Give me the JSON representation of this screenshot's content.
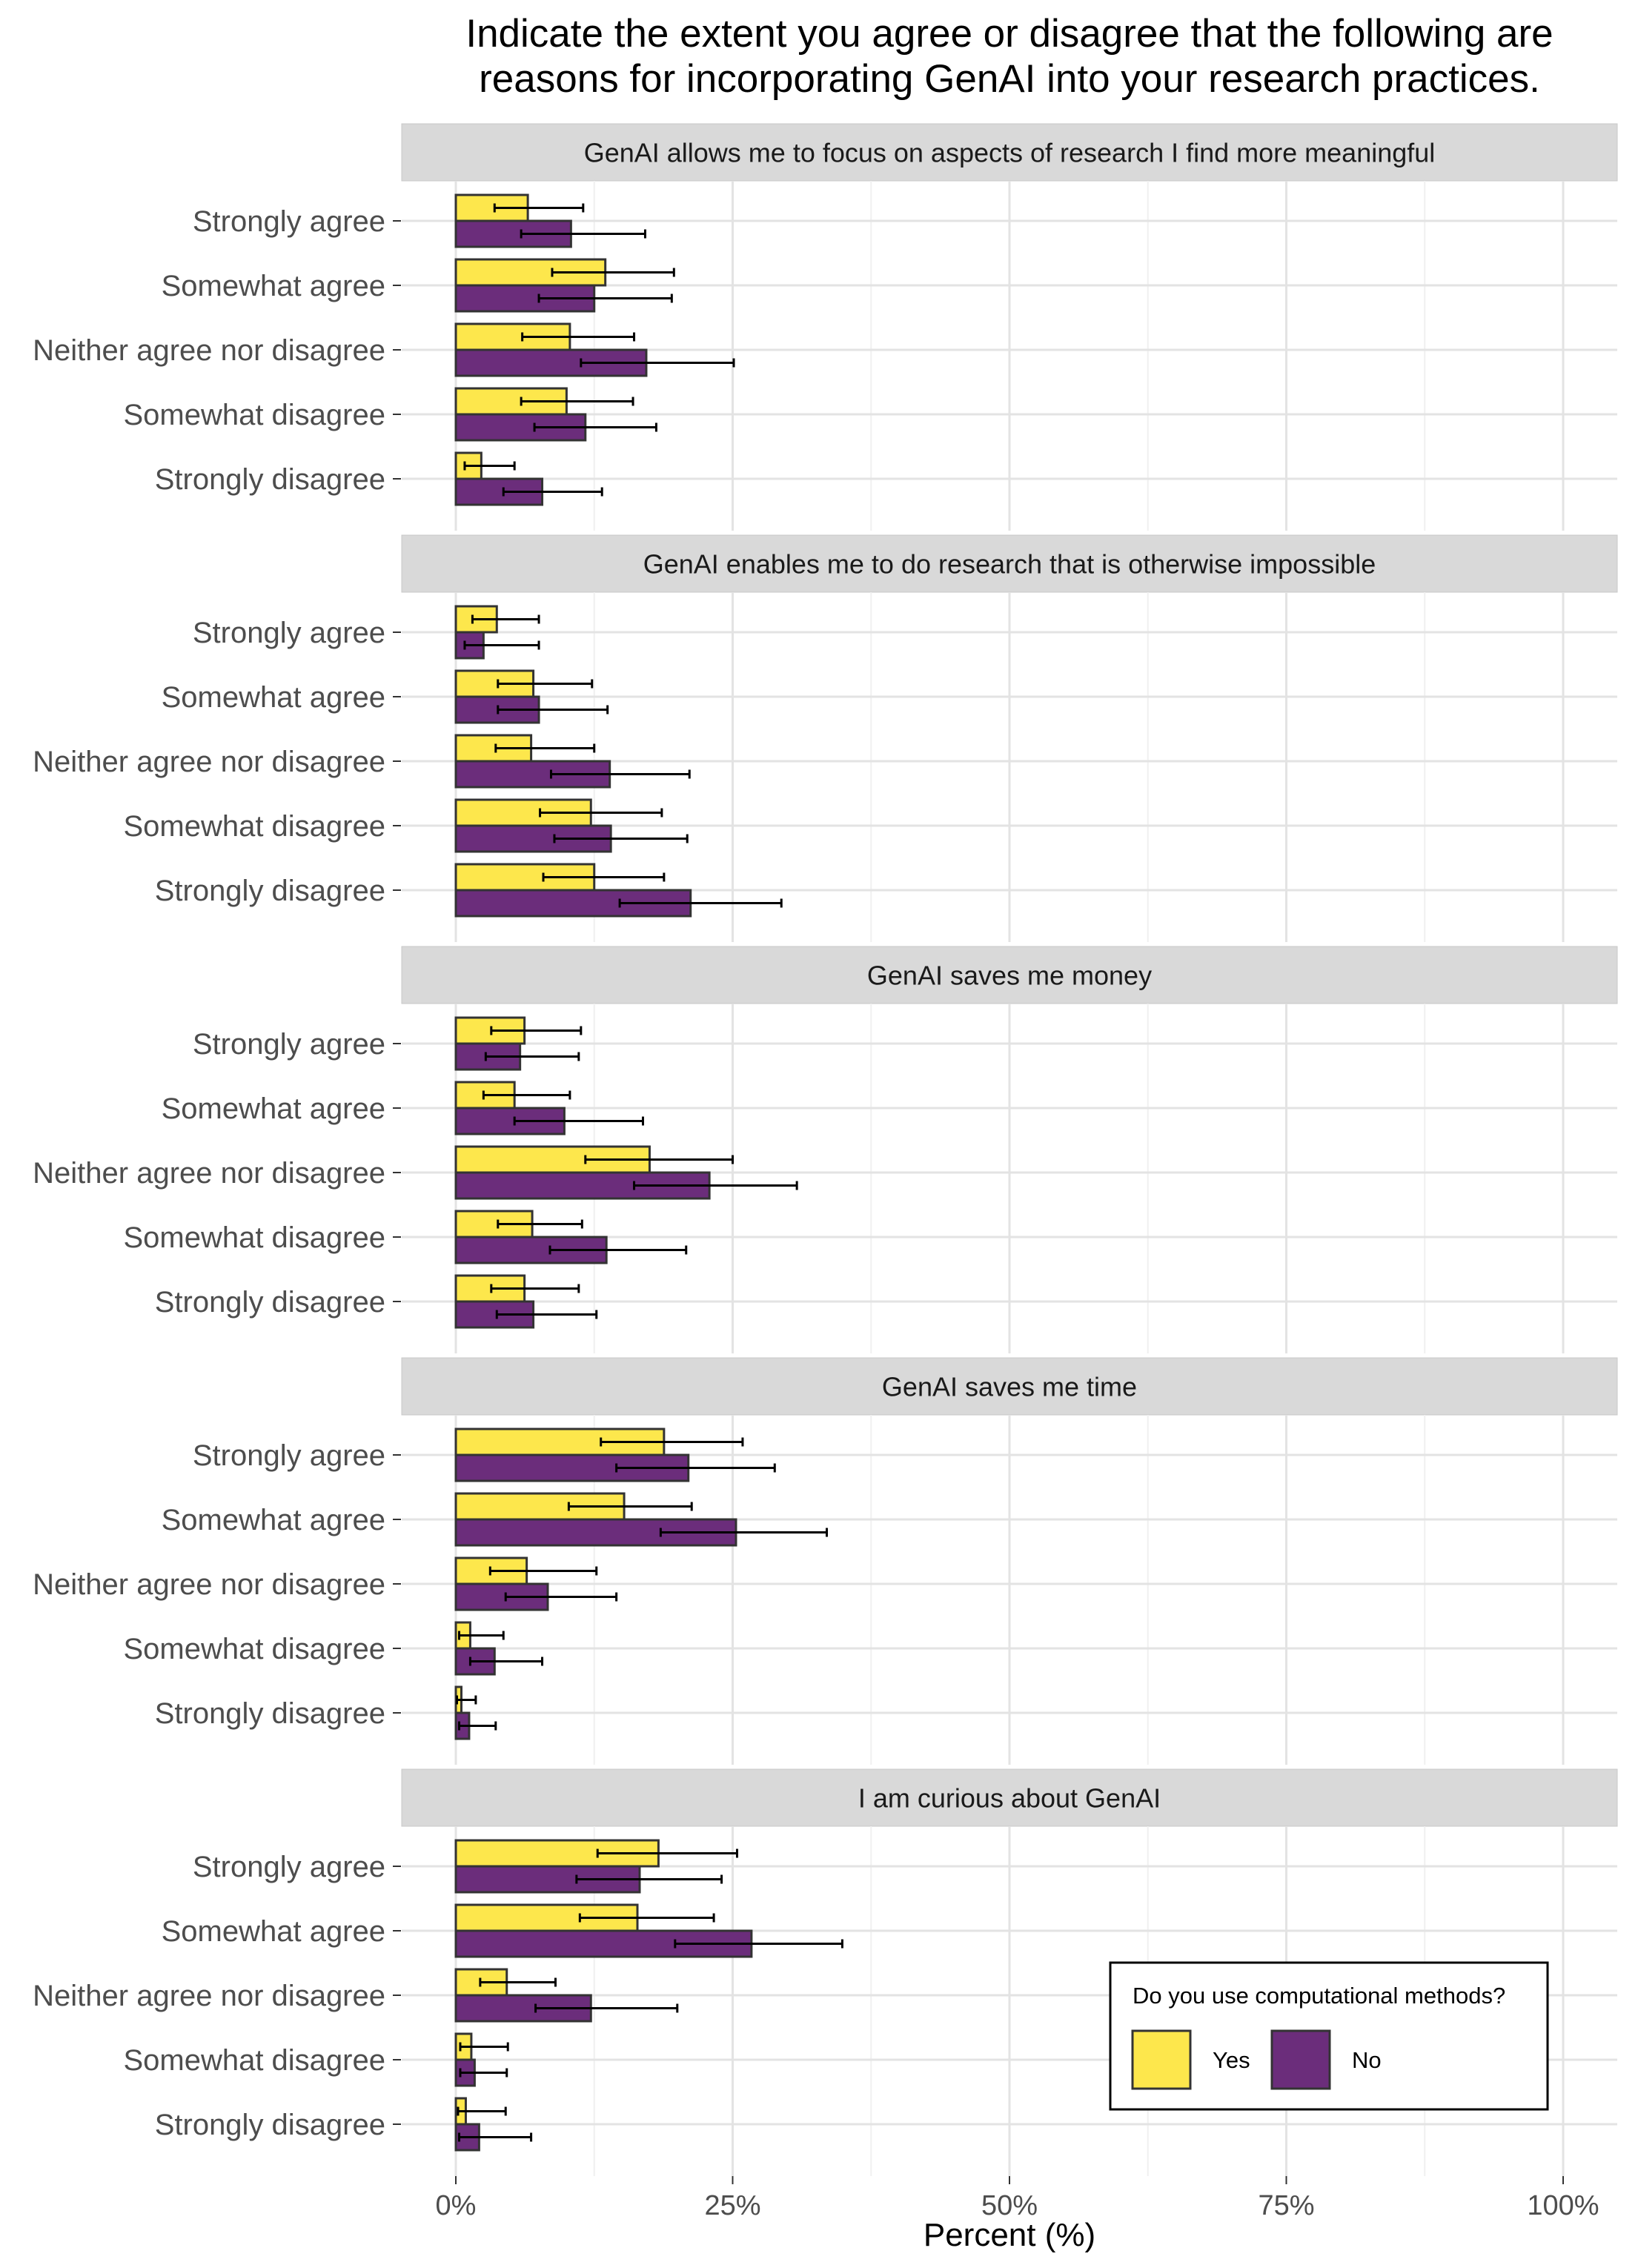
{
  "chart_data": {
    "type": "bar",
    "orientation": "horizontal",
    "title": "Indicate the extent you agree or disagree that the following are reasons for incorporating GenAI into your research practices.",
    "title_lines": [
      "Indicate the extent you agree or disagree that the following are",
      "reasons for incorporating GenAI into your research practices."
    ],
    "xlabel": "Percent (%)",
    "ylabel": "",
    "xlim": [
      0,
      100
    ],
    "x_ticks": [
      0,
      25,
      50,
      75,
      100
    ],
    "x_tick_labels": [
      "0%",
      "25%",
      "50%",
      "75%",
      "100%"
    ],
    "grid": true,
    "categories": [
      "Strongly agree",
      "Somewhat agree",
      "Neither agree nor disagree",
      "Somewhat disagree",
      "Strongly disagree"
    ],
    "legend": {
      "title": "Do you use computational methods?",
      "position": "bottom-right",
      "entries": [
        {
          "name": "Yes",
          "color": "#FDE74C"
        },
        {
          "name": "No",
          "color": "#6B2D7B"
        }
      ]
    },
    "colors": {
      "Yes": "#FDE74C",
      "No": "#6B2D7B"
    },
    "panels": [
      {
        "title": "GenAI allows me to focus on aspects of research I find more meaningful",
        "series": [
          {
            "name": "Yes",
            "values": [
              6.5,
              13.5,
              10.3,
              10.0,
              2.3
            ],
            "err_low": [
              3.5,
              8.7,
              6.0,
              5.9,
              0.8
            ],
            "err_high": [
              11.5,
              19.7,
              16.1,
              16.0,
              5.3
            ]
          },
          {
            "name": "No",
            "values": [
              10.4,
              12.5,
              17.2,
              11.7,
              7.8
            ],
            "err_low": [
              5.9,
              7.5,
              11.3,
              7.1,
              4.3
            ],
            "err_high": [
              17.1,
              19.5,
              25.1,
              18.1,
              13.2
            ]
          }
        ]
      },
      {
        "title": "GenAI enables me to do research that is otherwise impossible",
        "series": [
          {
            "name": "Yes",
            "values": [
              3.7,
              7.0,
              6.8,
              12.2,
              12.5
            ],
            "err_low": [
              1.5,
              3.8,
              3.6,
              7.6,
              7.9
            ],
            "err_high": [
              7.5,
              12.3,
              12.5,
              18.6,
              18.8
            ]
          },
          {
            "name": "No",
            "values": [
              2.5,
              7.5,
              13.9,
              14.0,
              21.2
            ],
            "err_low": [
              0.8,
              3.8,
              8.6,
              8.9,
              14.8
            ],
            "err_high": [
              7.5,
              13.7,
              21.1,
              20.9,
              29.4
            ]
          }
        ]
      },
      {
        "title": "GenAI saves me money",
        "series": [
          {
            "name": "Yes",
            "values": [
              6.2,
              5.3,
              17.5,
              6.9,
              6.2
            ],
            "err_low": [
              3.2,
              2.5,
              11.7,
              3.8,
              3.2
            ],
            "err_high": [
              11.3,
              10.3,
              25.0,
              11.4,
              11.1
            ]
          },
          {
            "name": "No",
            "values": [
              5.8,
              9.8,
              22.9,
              13.6,
              7.0
            ],
            "err_low": [
              2.7,
              5.3,
              16.1,
              8.5,
              3.7
            ],
            "err_high": [
              11.1,
              16.9,
              30.8,
              20.8,
              12.7
            ]
          }
        ]
      },
      {
        "title": "GenAI saves me time",
        "series": [
          {
            "name": "Yes",
            "values": [
              18.8,
              15.2,
              6.4,
              1.3,
              0.5
            ],
            "err_low": [
              13.1,
              10.2,
              3.1,
              0.3,
              0.1
            ],
            "err_high": [
              25.9,
              21.3,
              12.7,
              4.3,
              1.8
            ]
          },
          {
            "name": "No",
            "values": [
              21.0,
              25.3,
              8.3,
              3.5,
              1.2
            ],
            "err_low": [
              14.5,
              18.5,
              4.5,
              1.3,
              0.3
            ],
            "err_high": [
              28.8,
              33.5,
              14.5,
              7.8,
              3.6
            ]
          }
        ]
      },
      {
        "title": "I am curious about GenAI",
        "series": [
          {
            "name": "Yes",
            "values": [
              18.3,
              16.4,
              4.6,
              1.4,
              0.9
            ],
            "err_low": [
              12.8,
              11.2,
              2.2,
              0.4,
              0.2
            ],
            "err_high": [
              25.4,
              23.3,
              9.0,
              4.7,
              4.5
            ]
          },
          {
            "name": "No",
            "values": [
              16.6,
              26.7,
              12.2,
              1.7,
              2.1
            ],
            "err_low": [
              10.9,
              19.8,
              7.2,
              0.4,
              0.3
            ],
            "err_high": [
              24.0,
              34.9,
              20.0,
              4.6,
              6.8
            ]
          }
        ]
      }
    ]
  }
}
